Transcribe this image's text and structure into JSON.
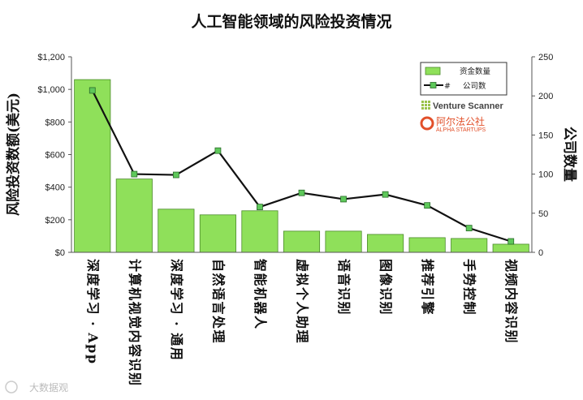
{
  "chart_data": {
    "type": "bar",
    "title": "人工智能领域的风险投资情况",
    "categories": [
      "深度学习 · App",
      "计算机视觉内容识别",
      "深度学习 · 通用",
      "自然语言处理",
      "智能机器人",
      "虚拟个人助理",
      "语音识别",
      "图像识别",
      "推荐引擎",
      "手势控制",
      "视频内容识别"
    ],
    "ylabel_left": "风险投资数额(美元)",
    "ylabel_right": "公司数量",
    "ylim_left": [
      0,
      1200
    ],
    "yticks_left": [
      "$0",
      "$200",
      "$400",
      "$600",
      "$800",
      "$1,000",
      "$1,200"
    ],
    "ylim_right": [
      0,
      250
    ],
    "yticks_right": [
      "0",
      "50",
      "100",
      "150",
      "200",
      "250"
    ],
    "series": [
      {
        "name": "资金数量",
        "type": "bar",
        "axis": "left",
        "color": "#8fe05a",
        "values": [
          1060,
          450,
          265,
          230,
          255,
          130,
          130,
          110,
          90,
          85,
          50
        ]
      },
      {
        "name": "公司数",
        "type": "line",
        "axis": "right",
        "color": "#111111",
        "marker_color": "#5ec85a",
        "values": [
          207,
          100,
          99,
          130,
          58,
          76,
          68,
          74,
          60,
          31,
          14
        ]
      }
    ],
    "legend": {
      "position": "top-right",
      "bar_label": "资金数量",
      "line_prefix": "#",
      "line_label": "公司数"
    },
    "grid": false
  },
  "brands": {
    "venture_scanner": "Venture Scanner",
    "alpha_cn": "阿尔法公社",
    "alpha_en": "ALPHA STARTUPS"
  },
  "watermark": "大数据观"
}
